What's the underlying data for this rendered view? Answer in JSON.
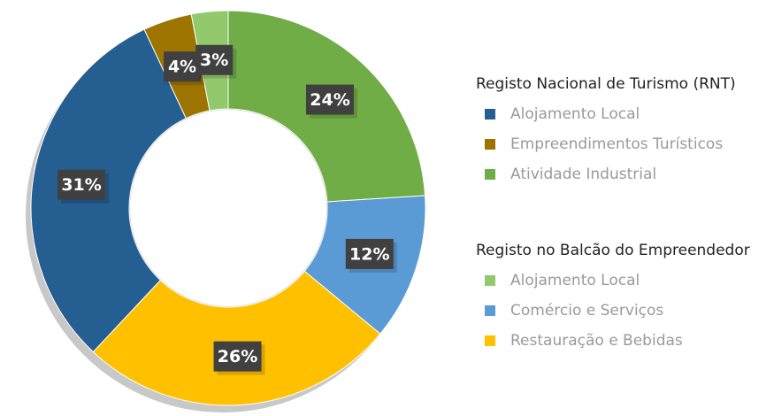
{
  "chart_data": {
    "type": "donut",
    "series": [
      {
        "name": "Atividade Industrial",
        "color": "#70ad47",
        "value": 24,
        "value_label": "24%"
      },
      {
        "name": "Comércio e Serviços",
        "color": "#5b9bd5",
        "value": 12,
        "value_label": "12%"
      },
      {
        "name": "Restauração e Bebidas",
        "color": "#ffc000",
        "value": 26,
        "value_label": "26%"
      },
      {
        "name": "Alojamento Local",
        "color": "#255e91",
        "value": 31,
        "value_label": "31%"
      },
      {
        "name": "Empreendimentos Turísticos",
        "color": "#9e7400",
        "value": 4,
        "value_label": "4%"
      },
      {
        "name": "Alojamento Local",
        "color": "#92c96c",
        "value": 3,
        "value_label": "3%"
      }
    ],
    "legend": [
      {
        "title": "Registo Nacional de Turismo (RNT)",
        "series": [
          3,
          4,
          0
        ]
      },
      {
        "title": "Registo no Balcão do Empreendedor",
        "series": [
          5,
          1,
          2
        ]
      }
    ]
  }
}
